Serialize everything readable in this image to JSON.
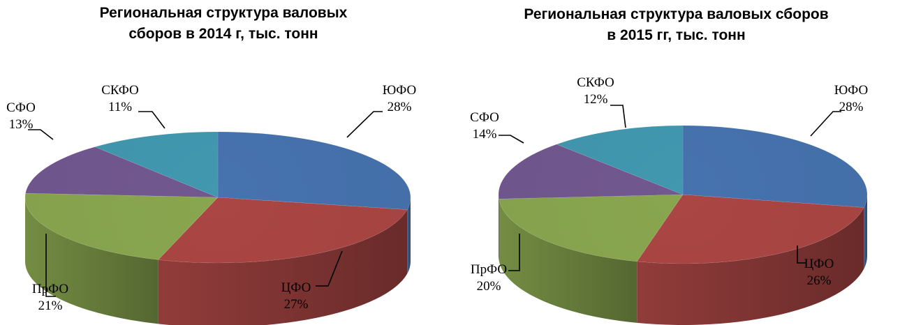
{
  "charts": [
    {
      "title_line1": "Региональная структура валовых",
      "title_line2": "сборов в 2014 г, тыс. тонн"
    },
    {
      "title_line1": "Региональная структура  валовых сборов",
      "title_line2": "в 2015 гг, тыс. тонн"
    }
  ],
  "chart_data": [
    {
      "type": "pie",
      "title": "Региональная структура валовых сборов в 2014 г, тыс. тонн",
      "categories": [
        "ЮФО",
        "ЦФО",
        "ПрФО",
        "СФО",
        "СКФО"
      ],
      "values": [
        28,
        27,
        21,
        13,
        11
      ],
      "labels": [
        "28%",
        "27%",
        "21%",
        "13%",
        "11%"
      ],
      "unit": "%",
      "colors": [
        "#4672AE",
        "#AA4644",
        "#89A64F",
        "#71588F",
        "#4198AF"
      ],
      "style": "3d"
    },
    {
      "type": "pie",
      "title": "Региональная структура валовых сборов в 2015 гг, тыс. тонн",
      "categories": [
        "ЮФО",
        "ЦФО",
        "ПрФО",
        "СФО",
        "СКФО"
      ],
      "values": [
        28,
        26,
        20,
        14,
        12
      ],
      "labels": [
        "28%",
        "26%",
        "20%",
        "14%",
        "12%"
      ],
      "unit": "%",
      "colors": [
        "#4672AE",
        "#AA4644",
        "#89A64F",
        "#71588F",
        "#4198AF"
      ],
      "style": "3d"
    }
  ]
}
